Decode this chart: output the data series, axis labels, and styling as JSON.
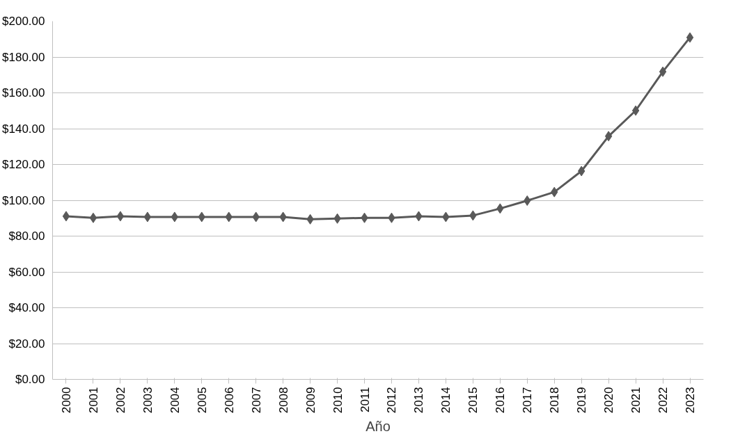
{
  "chart_data": {
    "type": "line",
    "xlabel": "Año",
    "categories": [
      "2000",
      "2001",
      "2002",
      "2003",
      "2004",
      "2005",
      "2006",
      "2007",
      "2008",
      "2009",
      "2010",
      "2011",
      "2012",
      "2013",
      "2014",
      "2015",
      "2016",
      "2017",
      "2018",
      "2019",
      "2020",
      "2021",
      "2022",
      "2023"
    ],
    "series": [
      {
        "color": "#595959",
        "values": [
          91.1,
          90.2,
          91.1,
          90.7,
          90.7,
          90.7,
          90.7,
          90.7,
          90.7,
          89.4,
          89.8,
          90.2,
          90.2,
          91.1,
          90.7,
          91.5,
          95.4,
          99.8,
          104.6,
          116.3,
          135.8,
          150.1,
          171.8,
          190.9
        ]
      }
    ],
    "ylim": [
      0,
      200
    ],
    "yticks": [
      {
        "value": 0,
        "label": "$0.00"
      },
      {
        "value": 20,
        "label": "$20.00"
      },
      {
        "value": 40,
        "label": "$40.00"
      },
      {
        "value": 60,
        "label": "$60.00"
      },
      {
        "value": 80,
        "label": "$80.00"
      },
      {
        "value": 100,
        "label": "$100.00"
      },
      {
        "value": 120,
        "label": "$120.00"
      },
      {
        "value": 140,
        "label": "$140.00"
      },
      {
        "value": 160,
        "label": "$160.00"
      },
      {
        "value": 180,
        "label": "$180.00"
      },
      {
        "value": 200,
        "label": "$200.00"
      }
    ],
    "grid": "y",
    "marker": "diamond",
    "line_style": "solid"
  }
}
